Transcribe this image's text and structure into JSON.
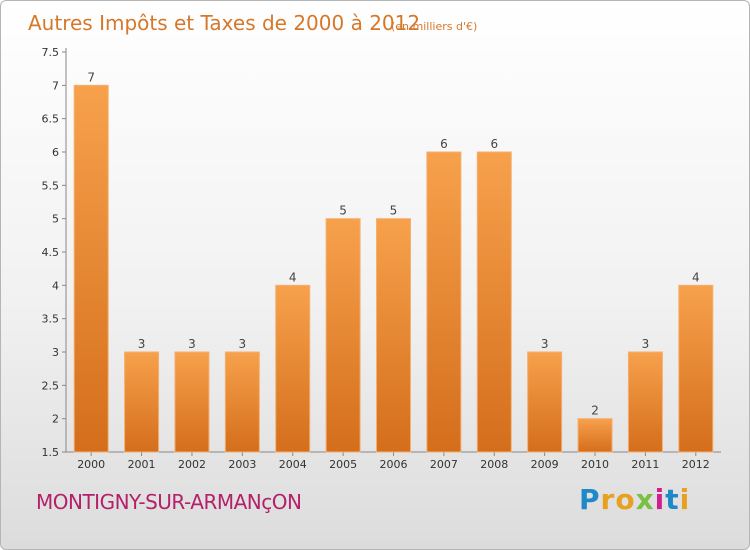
{
  "chart_data": {
    "type": "bar",
    "title": "Autres Impôts et Taxes de 2000 à 2012",
    "subtitle": "(en milliers d'€)",
    "categories": [
      "2000",
      "2001",
      "2002",
      "2003",
      "2004",
      "2005",
      "2006",
      "2007",
      "2008",
      "2009",
      "2010",
      "2011",
      "2012"
    ],
    "values": [
      7,
      3,
      3,
      3,
      4,
      5,
      5,
      6,
      6,
      3,
      2,
      3,
      4
    ],
    "ylim": [
      1.5,
      7.5
    ],
    "yticks": [
      "1.5",
      "2",
      "2.5",
      "3",
      "3.5",
      "4",
      "4.5",
      "5",
      "5.5",
      "6",
      "6.5",
      "7",
      "7.5"
    ],
    "grid": false,
    "bar_color": "#e88a2e"
  },
  "footer": {
    "commune": "MONTIGNY-SUR-ARMANçON",
    "logo": [
      "P",
      "r",
      "o",
      "x",
      "i",
      "t",
      "i"
    ]
  },
  "colors": {
    "title": "#d6782a",
    "commune": "#b4206a",
    "logo": [
      "#1e88c8",
      "#e8a020",
      "#e8a020",
      "#7ac143",
      "#d02090",
      "#1e88c8",
      "#e8a020"
    ]
  }
}
